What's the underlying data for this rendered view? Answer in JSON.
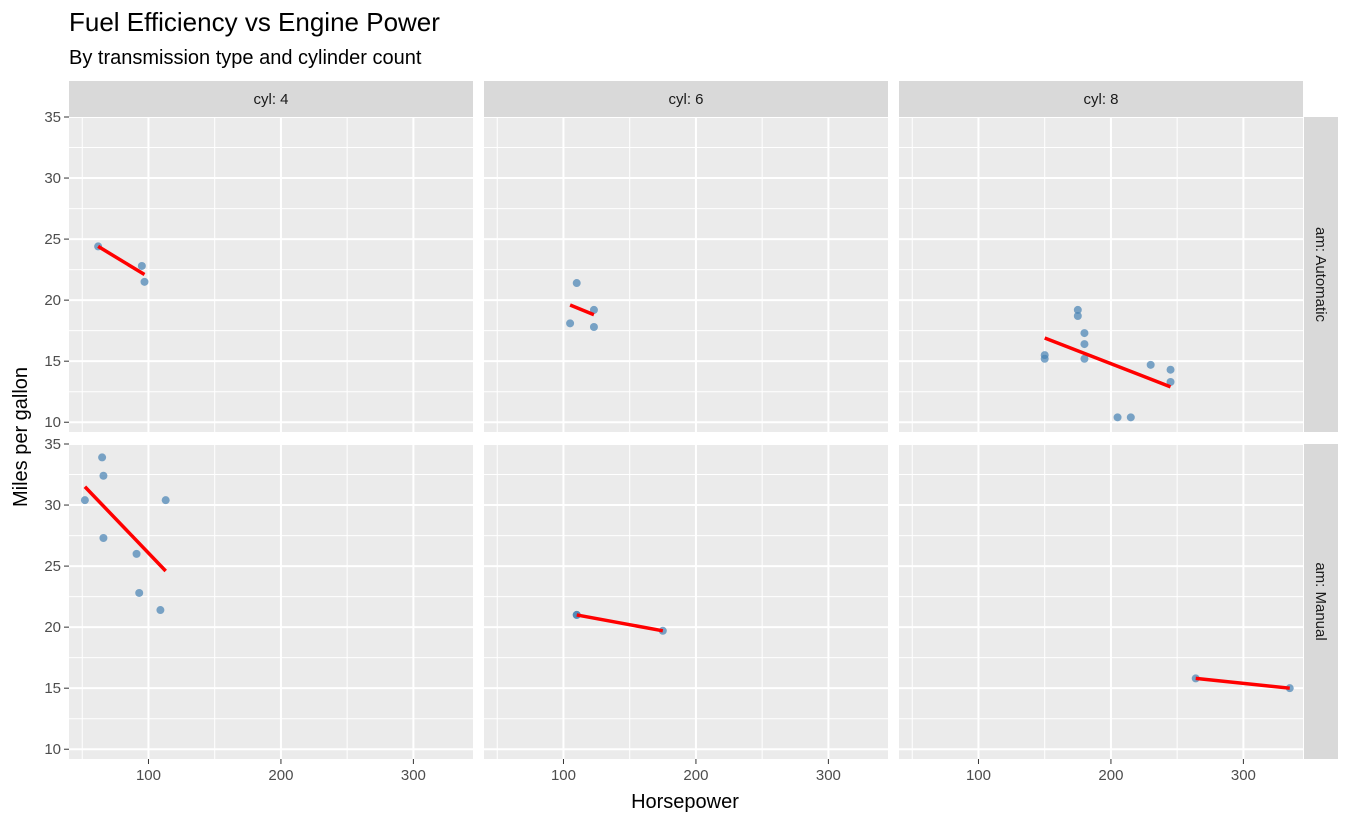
{
  "chart_data": {
    "type": "scatter",
    "title": "Fuel Efficiency vs Engine Power",
    "subtitle": "By transmission type and cylinder count",
    "xlabel": "Horsepower",
    "ylabel": "Miles per gallon",
    "xlim": [
      40,
      345
    ],
    "ylim": [
      9.2,
      35
    ],
    "x_ticks": [
      100,
      200,
      300
    ],
    "y_ticks": [
      10,
      15,
      20,
      25,
      30,
      35
    ],
    "col_facets": [
      "cyl: 4",
      "cyl: 6",
      "cyl: 8"
    ],
    "row_facets": [
      "am: Automatic",
      "am: Manual"
    ],
    "grid": true,
    "colors": {
      "panel_bg": "#ebebeb",
      "grid": "#ffffff",
      "strip_bg": "#d9d9d9",
      "point": "#4682b4",
      "fit_line": "#ff0000"
    },
    "panels": [
      {
        "col": 0,
        "row": 0,
        "points": [
          [
            62,
            24.4
          ],
          [
            95,
            22.8
          ],
          [
            97,
            21.5
          ]
        ],
        "fit": [
          [
            62,
            24.4
          ],
          [
            97,
            22.1
          ]
        ]
      },
      {
        "col": 1,
        "row": 0,
        "points": [
          [
            105,
            18.1
          ],
          [
            110,
            21.4
          ],
          [
            123,
            19.2
          ],
          [
            123,
            17.8
          ]
        ],
        "fit": [
          [
            105,
            19.6
          ],
          [
            123,
            18.8
          ]
        ]
      },
      {
        "col": 2,
        "row": 0,
        "points": [
          [
            150,
            15.5
          ],
          [
            150,
            15.2
          ],
          [
            175,
            18.7
          ],
          [
            175,
            19.2
          ],
          [
            180,
            17.3
          ],
          [
            180,
            16.4
          ],
          [
            180,
            15.2
          ],
          [
            205,
            10.4
          ],
          [
            215,
            10.4
          ],
          [
            230,
            14.7
          ],
          [
            245,
            14.3
          ],
          [
            245,
            13.3
          ]
        ],
        "fit": [
          [
            150,
            16.9
          ],
          [
            245,
            12.9
          ]
        ]
      },
      {
        "col": 0,
        "row": 1,
        "points": [
          [
            52,
            30.4
          ],
          [
            65,
            33.9
          ],
          [
            66,
            32.4
          ],
          [
            66,
            27.3
          ],
          [
            91,
            26.0
          ],
          [
            93,
            22.8
          ],
          [
            109,
            21.4
          ],
          [
            113,
            30.4
          ]
        ],
        "fit": [
          [
            52,
            31.5
          ],
          [
            113,
            24.6
          ]
        ]
      },
      {
        "col": 1,
        "row": 1,
        "points": [
          [
            110,
            21.0
          ],
          [
            110,
            21.0
          ],
          [
            175,
            19.7
          ]
        ],
        "fit": [
          [
            110,
            21.0
          ],
          [
            175,
            19.7
          ]
        ]
      },
      {
        "col": 2,
        "row": 1,
        "points": [
          [
            264,
            15.8
          ],
          [
            335,
            15.0
          ]
        ],
        "fit": [
          [
            264,
            15.8
          ],
          [
            335,
            15.0
          ]
        ]
      }
    ]
  }
}
